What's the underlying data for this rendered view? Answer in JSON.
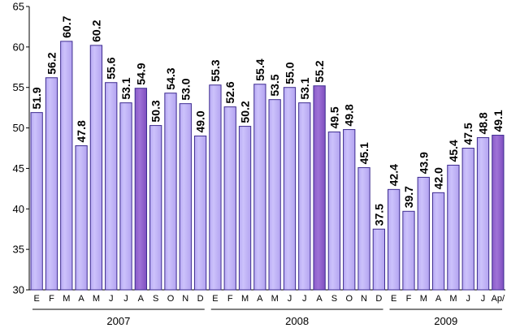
{
  "chart_data": {
    "type": "bar",
    "title": "",
    "xlabel": "",
    "ylabel": "",
    "ylim": [
      30,
      65
    ],
    "yticks": [
      30,
      35,
      40,
      45,
      50,
      55,
      60,
      65
    ],
    "grid": false,
    "legend": "none",
    "colors": {
      "bar": "#ccc2fb",
      "highlight": "#9f72d7",
      "bar_edge": "#3d2b90"
    },
    "categories": [
      "E",
      "F",
      "M",
      "A",
      "M",
      "J",
      "J",
      "A",
      "S",
      "O",
      "N",
      "D",
      "E",
      "F",
      "M",
      "A",
      "M",
      "J",
      "J",
      "A",
      "S",
      "O",
      "N",
      "D",
      "E",
      "F",
      "M",
      "A",
      "M",
      "J",
      "J",
      "Ap/"
    ],
    "values": [
      51.9,
      56.2,
      60.7,
      47.8,
      60.2,
      55.6,
      53.1,
      54.9,
      50.3,
      54.3,
      53.0,
      49.0,
      55.3,
      52.6,
      50.2,
      55.4,
      53.5,
      55.0,
      53.1,
      55.2,
      49.5,
      49.8,
      45.1,
      37.5,
      42.4,
      39.7,
      43.9,
      42.0,
      45.4,
      47.5,
      48.8,
      49.1
    ],
    "value_labels": [
      "51.9",
      "56.2",
      "60.7",
      "47.8",
      "60.2",
      "55.6",
      "53.1",
      "54.9",
      "50.3",
      "54.3",
      "53.0",
      "49.0",
      "55.3",
      "52.6",
      "50.2",
      "55.4",
      "53.5",
      "55.0",
      "53.1",
      "55.2",
      "49.5",
      "49.8",
      "45.1",
      "37.5",
      "42.4",
      "39.7",
      "43.9",
      "42.0",
      "45.4",
      "47.5",
      "48.8",
      "49.1"
    ],
    "highlighted_indices": [
      7,
      19,
      31
    ],
    "groups": [
      {
        "label": "2007",
        "start": 0,
        "end": 11
      },
      {
        "label": "2008",
        "start": 12,
        "end": 23
      },
      {
        "label": "2009",
        "start": 24,
        "end": 31
      }
    ]
  }
}
